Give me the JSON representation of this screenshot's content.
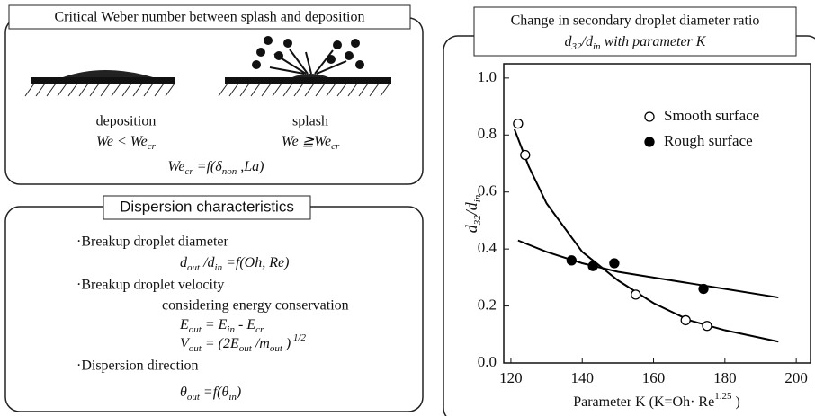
{
  "weber": {
    "title": "Critical Weber number between splash and deposition",
    "labels": [
      "deposition",
      "splash"
    ],
    "conditions": [
      [
        "We < We",
        {
          "sub": "cr"
        }
      ],
      [
        "We ≧We",
        {
          "sub": "cr"
        }
      ]
    ],
    "criterion": [
      "We",
      {
        "sub": "cr"
      },
      " =f(δ",
      {
        "sub": "non"
      },
      " ,La)"
    ]
  },
  "dispersion": {
    "title": "Dispersion characteristics",
    "items": [
      {
        "heading": "·Breakup droplet diameter",
        "formulas": [
          [
            "d",
            {
              "sub": "out"
            },
            " /d",
            {
              "sub": "in"
            },
            " =f(Oh, Re)"
          ]
        ]
      },
      {
        "heading": "·Breakup droplet velocity",
        "note": "considering energy conservation",
        "formulas": [
          [
            "E",
            {
              "sub": "out"
            },
            " = E",
            {
              "sub": "in"
            },
            " - E",
            {
              "sub": "cr"
            }
          ],
          [
            "V",
            {
              "sub": "out"
            },
            " = (2E",
            {
              "sub": "out"
            },
            " /m",
            {
              "sub": "out"
            },
            " )",
            {
              "sup": " 1/2"
            }
          ]
        ]
      },
      {
        "heading": "·Dispersion direction",
        "formulas": [
          [
            "θ",
            {
              "sub": "out"
            },
            " =f(θ",
            {
              "sub": "in"
            },
            ")"
          ]
        ]
      }
    ]
  },
  "chart_data": {
    "type": "scatter",
    "title": "Change in secondary droplet diameter ratio",
    "subtitle": [
      "d",
      {
        "sub": "32"
      },
      "/d",
      {
        "sub": "in"
      },
      " with parameter K"
    ],
    "xlabel": [
      "Parameter K (K=Oh· Re",
      {
        "sup": "1.25"
      },
      " )"
    ],
    "ylabel": [
      "d",
      {
        "sub": "32"
      },
      "/d",
      {
        "sub": "in"
      }
    ],
    "xlim": [
      118,
      204
    ],
    "ylim": [
      0,
      1.05
    ],
    "xticks": [
      120,
      140,
      160,
      180,
      200
    ],
    "yticks": [
      {
        "value": 0,
        "label": "0.0"
      },
      0.2,
      0.4,
      0.6,
      0.8,
      {
        "value": 1,
        "label": "1.0"
      }
    ],
    "legend": "upper right",
    "series": [
      {
        "name": "Smooth surface",
        "color": "#000000",
        "fill": "#ffffff",
        "x": [
          122,
          124,
          155,
          169,
          175
        ],
        "values": [
          0.84,
          0.73,
          0.24,
          0.15,
          0.13
        ]
      },
      {
        "name": "Rough surface",
        "color": "#000000",
        "fill": "#000000",
        "x": [
          137,
          143,
          149,
          174
        ],
        "values": [
          0.36,
          0.34,
          0.35,
          0.26
        ]
      }
    ],
    "curves": [
      {
        "color": "#000000",
        "x": [
          121,
          125,
          130,
          140,
          150,
          160,
          170,
          180,
          195
        ],
        "values": [
          0.82,
          0.69,
          0.56,
          0.39,
          0.29,
          0.21,
          0.15,
          0.115,
          0.075
        ]
      },
      {
        "color": "#000000",
        "x": [
          122,
          130,
          140,
          150,
          160,
          170,
          180,
          195
        ],
        "values": [
          0.43,
          0.39,
          0.35,
          0.32,
          0.3,
          0.28,
          0.26,
          0.23
        ]
      }
    ]
  }
}
